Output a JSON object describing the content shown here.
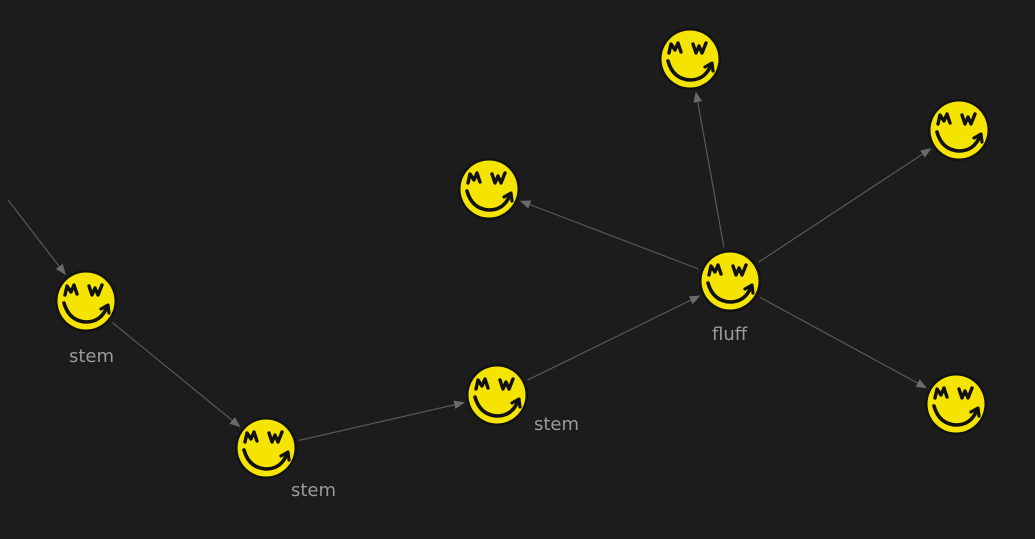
{
  "diagram": {
    "background": "#1c1c1c",
    "edge_color": "#585858",
    "node_face_color": "#f5e400",
    "node_ring_color": "#121212",
    "node_icon": "grin-mw-smiley-icon",
    "node_text": "MW",
    "nodes": [
      {
        "id": "n1",
        "label": "stem"
      },
      {
        "id": "n2",
        "label": "stem"
      },
      {
        "id": "n3",
        "label": "stem"
      },
      {
        "id": "n4",
        "label": "fluff"
      },
      {
        "id": "n5",
        "label": ""
      },
      {
        "id": "n6",
        "label": ""
      },
      {
        "id": "n7",
        "label": ""
      },
      {
        "id": "n8",
        "label": ""
      }
    ],
    "edges": [
      {
        "from": "incoming",
        "to": "n1"
      },
      {
        "from": "n1",
        "to": "n2"
      },
      {
        "from": "n2",
        "to": "n3"
      },
      {
        "from": "n3",
        "to": "n4"
      },
      {
        "from": "n4",
        "to": "n5"
      },
      {
        "from": "n4",
        "to": "n6"
      },
      {
        "from": "n4",
        "to": "n7"
      },
      {
        "from": "n4",
        "to": "n8"
      }
    ]
  }
}
